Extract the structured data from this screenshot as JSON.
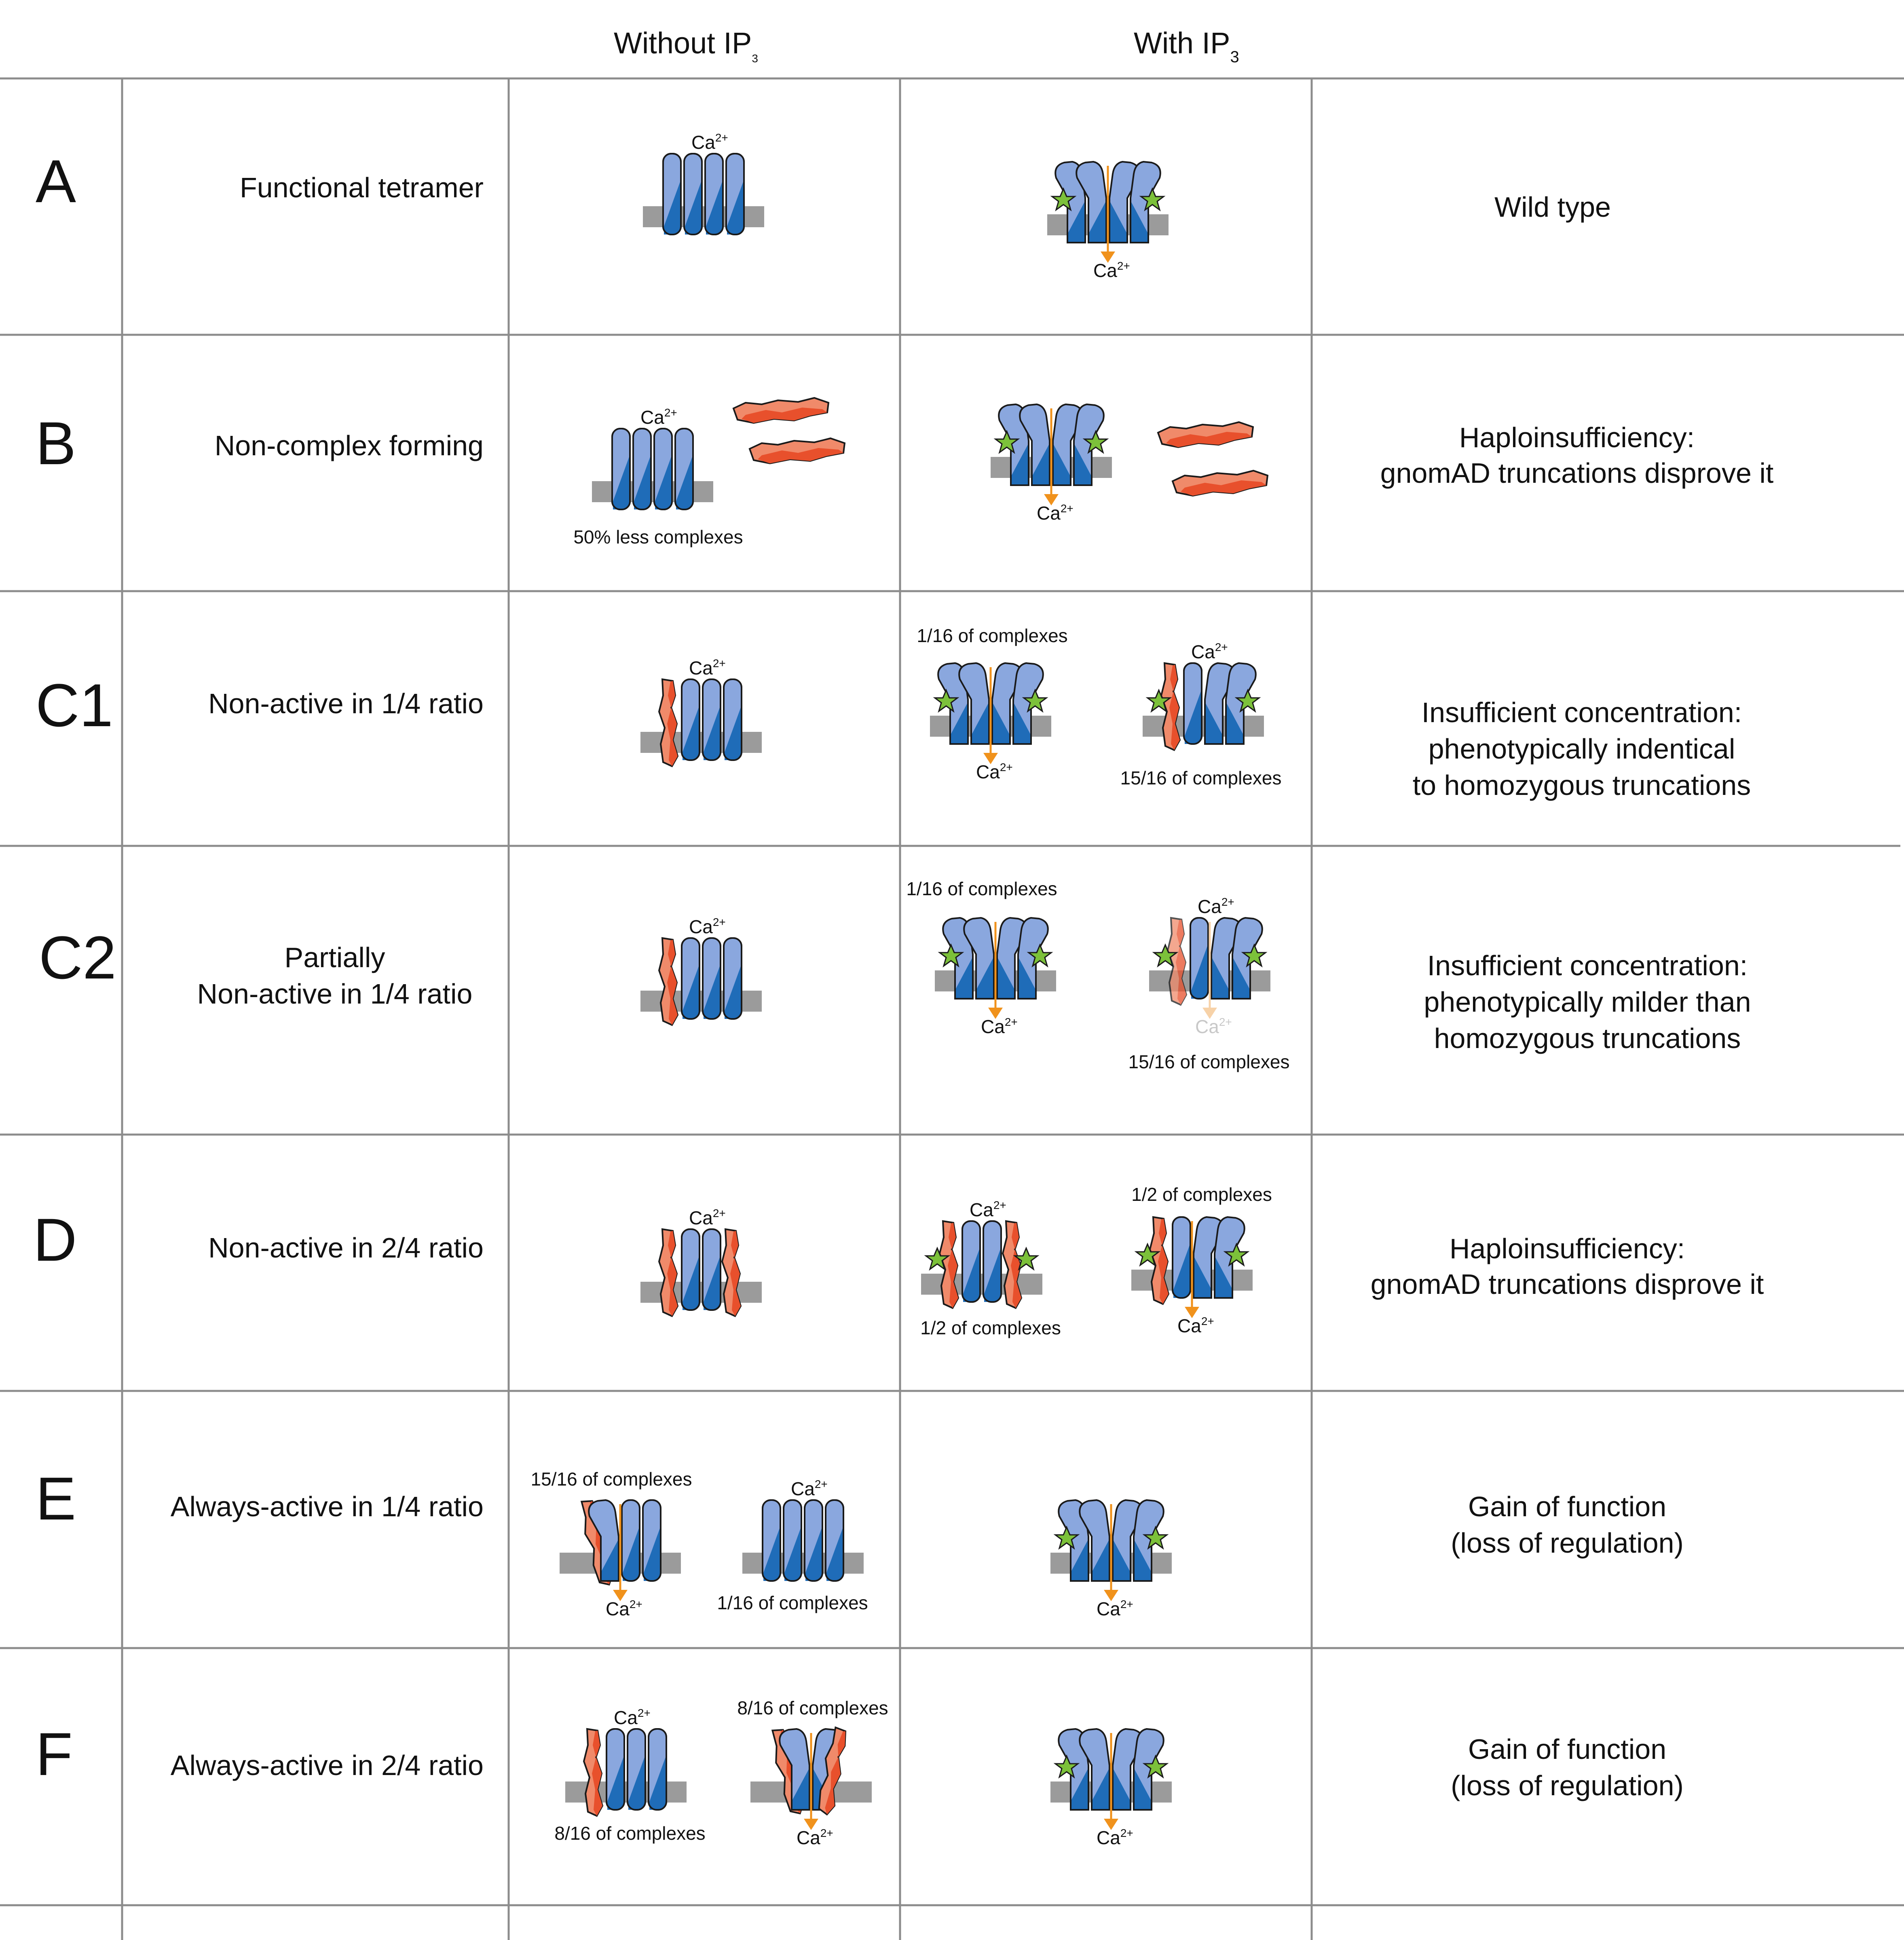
{
  "header": {
    "col_without": "Without IP",
    "col_with": "With IP",
    "sub": "3"
  },
  "ca": "Ca",
  "ca_sup": "2+",
  "rows": [
    {
      "letter": "A",
      "desc": [
        "Functional tetramer"
      ],
      "result": [
        "Wild type"
      ]
    },
    {
      "letter": "B",
      "desc": [
        "Non-complex forming"
      ],
      "result": [
        "Haploinsufficiency:",
        "gnomAD truncations disprove it"
      ],
      "captions": {
        "without_1": "50% less complexes"
      }
    },
    {
      "letter": "C1",
      "desc": [
        "Non-active in 1/4 ratio"
      ],
      "result": [
        "Insufficient concentration:",
        "phenotypically indentical",
        "to homozygous truncations"
      ],
      "captions": {
        "with_1": "1/16 of complexes",
        "with_2": "15/16 of complexes"
      }
    },
    {
      "letter": "C2",
      "desc": [
        "Partially",
        "Non-active in 1/4 ratio"
      ],
      "result": [
        "Insufficient concentration:",
        "phenotypically milder than",
        "homozygous truncations"
      ],
      "captions": {
        "with_1": "1/16 of complexes",
        "with_2": "15/16 of complexes"
      }
    },
    {
      "letter": "D",
      "desc": [
        "Non-active in 2/4 ratio"
      ],
      "result": [
        "Haploinsufficiency:",
        "gnomAD truncations disprove it"
      ],
      "captions": {
        "with_1": "1/2 of complexes",
        "with_2": "1/2 of complexes"
      }
    },
    {
      "letter": "E",
      "desc": [
        "Always-active in 1/4 ratio"
      ],
      "result": [
        "Gain of function",
        "(loss of regulation)"
      ],
      "captions": {
        "without_1": "15/16 of complexes",
        "without_2": "1/16 of complexes"
      }
    },
    {
      "letter": "F",
      "desc": [
        "Always-active in 2/4 ratio"
      ],
      "result": [
        "Gain of function",
        "(loss of regulation)"
      ],
      "captions": {
        "without_1": "8/16 of complexes",
        "without_2": "8/16 of complexes"
      }
    }
  ],
  "colors": {
    "grid": "#8c8c8c",
    "light_blue": "#8aa7de",
    "dark_blue": "#1f6cb8",
    "membrane": "#9b9b9b",
    "red": "#e8502c",
    "salmon": "#f08a6a",
    "arrow": "#f0921c",
    "star": "#7cc13a"
  }
}
